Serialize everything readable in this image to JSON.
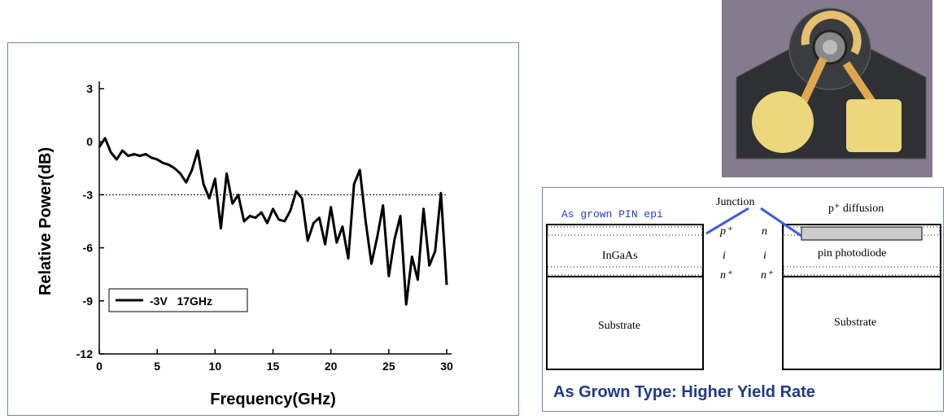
{
  "chart_data": {
    "type": "line",
    "x_label": "Frequency(GHz)",
    "y_label": "Relative Power(dB)",
    "x": [
      0,
      0.5,
      1,
      1.5,
      2,
      2.5,
      3,
      3.5,
      4,
      4.5,
      5,
      5.5,
      6,
      6.5,
      7,
      7.5,
      8,
      8.5,
      9,
      9.5,
      10,
      10.5,
      11,
      11.5,
      12,
      12.5,
      13,
      13.5,
      14,
      14.5,
      15,
      15.5,
      16,
      16.5,
      17,
      17.5,
      18,
      18.5,
      19,
      19.5,
      20,
      20.5,
      21,
      21.5,
      22,
      22.5,
      23,
      23.5,
      24,
      24.5,
      25,
      25.5,
      26,
      26.5,
      27,
      27.5,
      28,
      28.5,
      29,
      29.5,
      30
    ],
    "series": [
      {
        "name": "-3V   17GHz",
        "color": "#000000",
        "values": [
          -0.3,
          0.2,
          -0.6,
          -1.0,
          -0.5,
          -0.8,
          -0.7,
          -0.8,
          -0.7,
          -0.9,
          -1.0,
          -1.2,
          -1.3,
          -1.5,
          -1.8,
          -2.3,
          -1.6,
          -0.5,
          -2.4,
          -3.2,
          -2.1,
          -4.9,
          -1.8,
          -3.5,
          -3.0,
          -4.5,
          -4.2,
          -4.3,
          -4.0,
          -4.6,
          -3.8,
          -4.4,
          -4.5,
          -3.9,
          -2.8,
          -3.2,
          -5.6,
          -4.6,
          -4.3,
          -5.8,
          -3.7,
          -5.7,
          -4.8,
          -6.6,
          -2.4,
          -1.6,
          -4.5,
          -6.9,
          -5.4,
          -3.6,
          -7.6,
          -5.5,
          -4.2,
          -9.2,
          -6.5,
          -7.8,
          -3.8,
          -7.0,
          -6.2,
          -2.9,
          -8.1
        ]
      }
    ],
    "reference_line": -3,
    "xlim": [
      0,
      30
    ],
    "ylim": [
      -12,
      3
    ],
    "xticks": [
      0,
      5,
      10,
      15,
      20,
      25,
      30
    ],
    "yticks": [
      -12,
      -9,
      -6,
      -3,
      0,
      3
    ],
    "legend_loc": "lower left",
    "grid": false
  },
  "diagram": {
    "left_label": "As grown PIN epi",
    "junction": "Junction",
    "right_label": "p⁺ diffusion",
    "layers_mid": [
      "p⁺",
      "i",
      "n⁺"
    ],
    "layers_right_mid": [
      "n",
      "i",
      "n⁺"
    ],
    "ingaas": "InGaAs",
    "pin": "pin photodiode",
    "substrate_left": "Substrate",
    "substrate_right": "Substrate",
    "caption": "As Grown Type: Higher Yield Rate"
  }
}
